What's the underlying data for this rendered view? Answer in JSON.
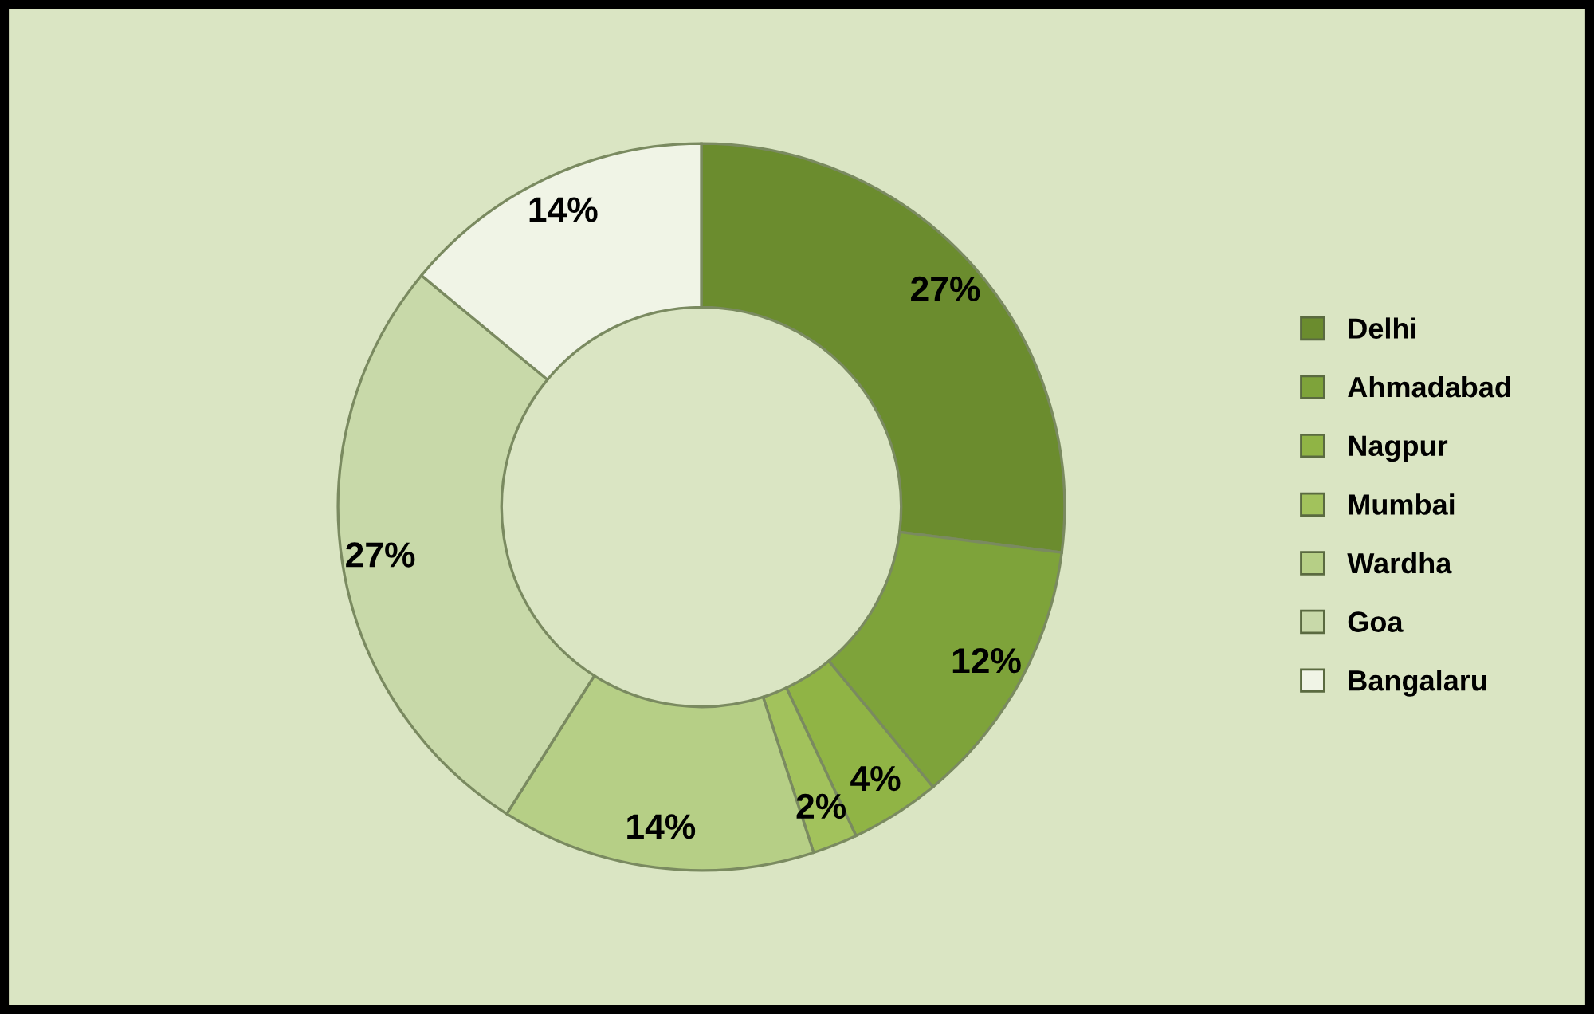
{
  "chart_data": {
    "type": "donut",
    "categories": [
      "Delhi",
      "Ahmadabad",
      "Nagpur",
      "Mumbai",
      "Wardha",
      "Goa",
      "Bangalaru"
    ],
    "values": [
      27,
      12,
      4,
      2,
      14,
      27,
      14
    ],
    "colors": [
      "#6b8c2e",
      "#7ea33a",
      "#90b445",
      "#a2c25c",
      "#b6cf86",
      "#c8d9a9",
      "#f0f4e6"
    ],
    "value_labels": [
      "27%",
      "12%",
      "4%",
      "2%",
      "14%",
      "27%",
      "14%"
    ],
    "legend": "right"
  }
}
